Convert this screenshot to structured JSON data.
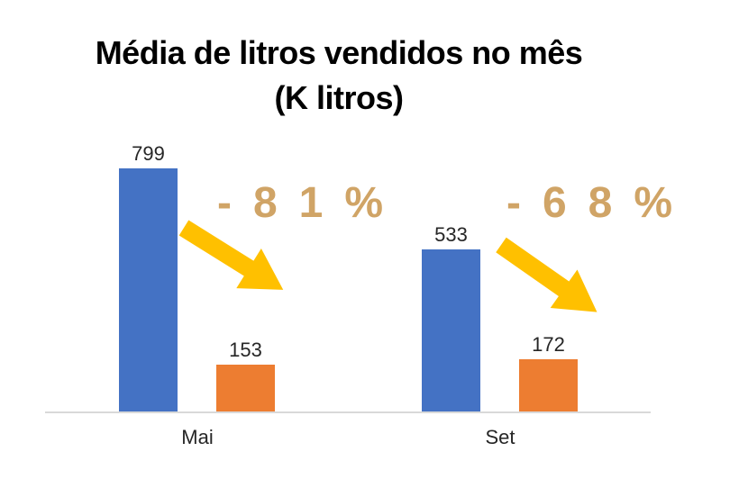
{
  "title": {
    "line1": "Média de litros vendidos no mês",
    "line2": "(K litros)"
  },
  "chart_data": {
    "type": "bar",
    "title": "Média de litros vendidos no mês (K litros)",
    "categories": [
      "Mai",
      "Set"
    ],
    "series": [
      {
        "name": "blue",
        "color": "#4472C4",
        "values": [
          799,
          533
        ]
      },
      {
        "name": "orange",
        "color": "#ED7D31",
        "values": [
          153,
          172
        ]
      }
    ],
    "data_labels": true,
    "annotations": [
      {
        "label": "-81%",
        "category": "Mai",
        "arrow": "down-right"
      },
      {
        "label": "-68%",
        "category": "Set",
        "arrow": "down-right"
      }
    ],
    "xlabel": "",
    "ylabel": "",
    "ylim": [
      0,
      820
    ],
    "grid": false,
    "legend": "none"
  },
  "colors": {
    "bar_blue": "#4472C4",
    "bar_orange": "#ED7D31",
    "arrow": "#FFC000",
    "annotation_text": "#D0A466",
    "axis_line": "#D9D9D9",
    "title_text": "#000000",
    "label_text": "#262626"
  }
}
